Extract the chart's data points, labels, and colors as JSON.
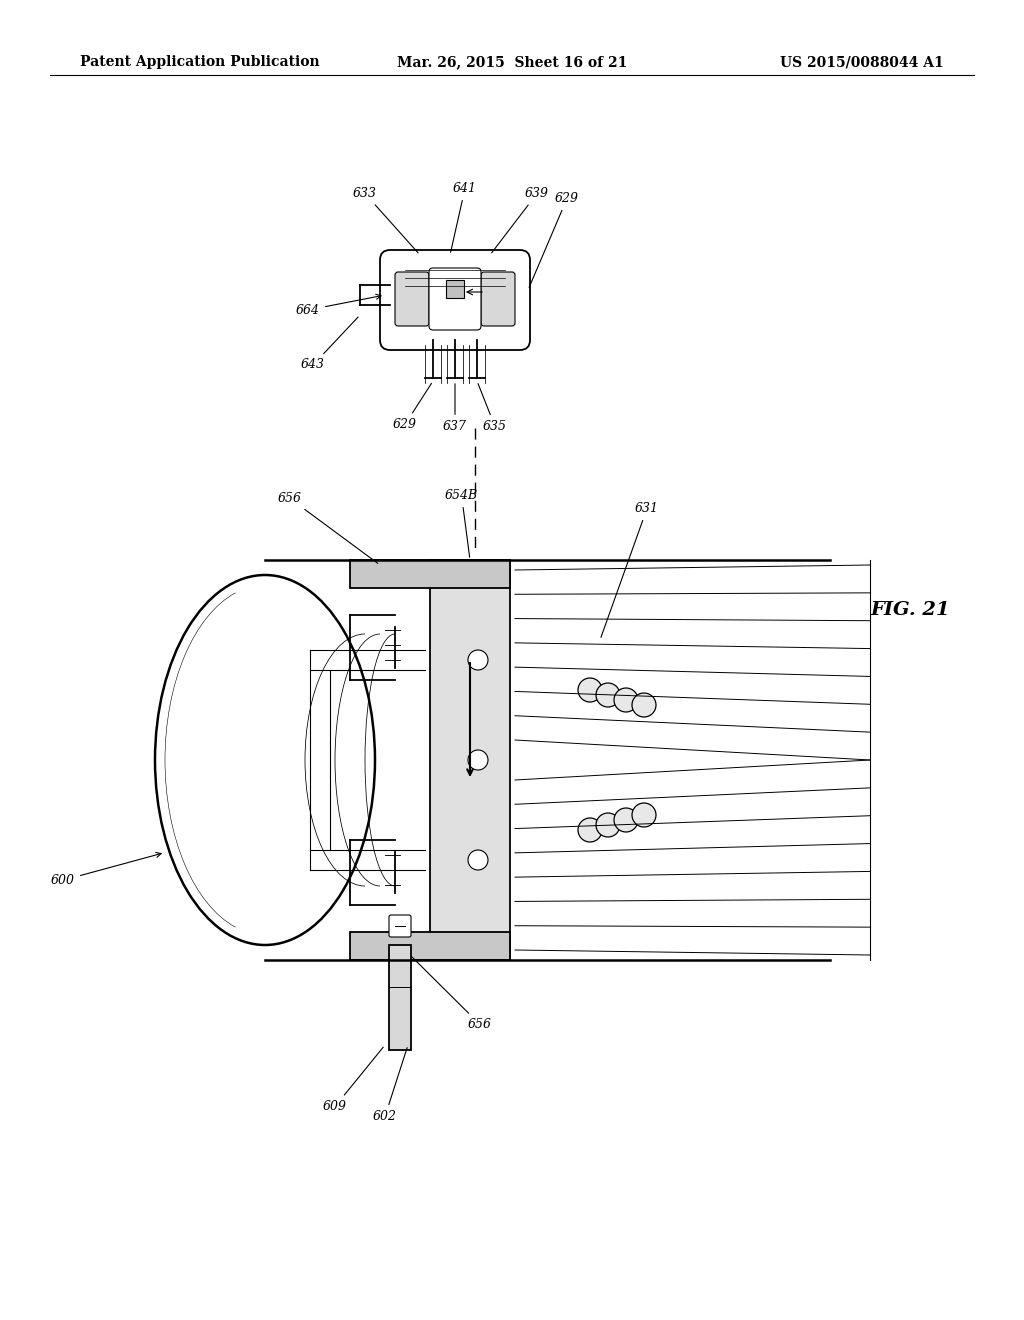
{
  "bg_color": "#ffffff",
  "header_left": "Patent Application Publication",
  "header_center": "Mar. 26, 2015  Sheet 16 of 21",
  "header_right": "US 2015/0088044 A1",
  "fig_label": "FIG. 21",
  "header_fontsize": 10,
  "fig_fontsize": 14,
  "label_fontsize": 9,
  "page_width": 10.24,
  "page_height": 13.2,
  "dpi": 100
}
